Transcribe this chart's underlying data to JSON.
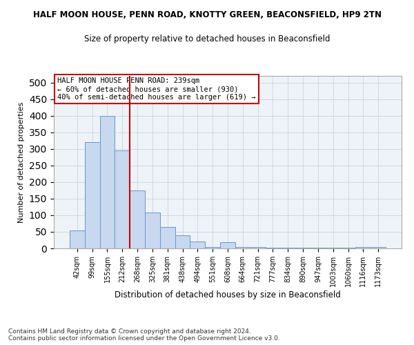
{
  "title": "HALF MOON HOUSE, PENN ROAD, KNOTTY GREEN, BEACONSFIELD, HP9 2TN",
  "subtitle": "Size of property relative to detached houses in Beaconsfield",
  "xlabel": "Distribution of detached houses by size in Beaconsfield",
  "ylabel": "Number of detached properties",
  "footer_line1": "Contains HM Land Registry data © Crown copyright and database right 2024.",
  "footer_line2": "Contains public sector information licensed under the Open Government Licence v3.0.",
  "annotation_line1": "HALF MOON HOUSE PENN ROAD: 239sqm",
  "annotation_line2": "← 60% of detached houses are smaller (930)",
  "annotation_line3": "40% of semi-detached houses are larger (619) →",
  "bar_color": "#c8d8ee",
  "bar_edge_color": "#6699cc",
  "annotation_box_color": "#cc0000",
  "vline_color": "#cc0000",
  "vline_x": 3.5,
  "categories": [
    "42sqm",
    "99sqm",
    "155sqm",
    "212sqm",
    "268sqm",
    "325sqm",
    "381sqm",
    "438sqm",
    "494sqm",
    "551sqm",
    "608sqm",
    "664sqm",
    "721sqm",
    "777sqm",
    "834sqm",
    "890sqm",
    "947sqm",
    "1003sqm",
    "1060sqm",
    "1116sqm",
    "1173sqm"
  ],
  "values": [
    55,
    320,
    400,
    295,
    175,
    108,
    65,
    40,
    20,
    5,
    18,
    5,
    5,
    3,
    3,
    3,
    3,
    3,
    3,
    5,
    5
  ],
  "ylim": [
    0,
    520
  ],
  "yticks": [
    0,
    50,
    100,
    150,
    200,
    250,
    300,
    350,
    400,
    450,
    500
  ]
}
